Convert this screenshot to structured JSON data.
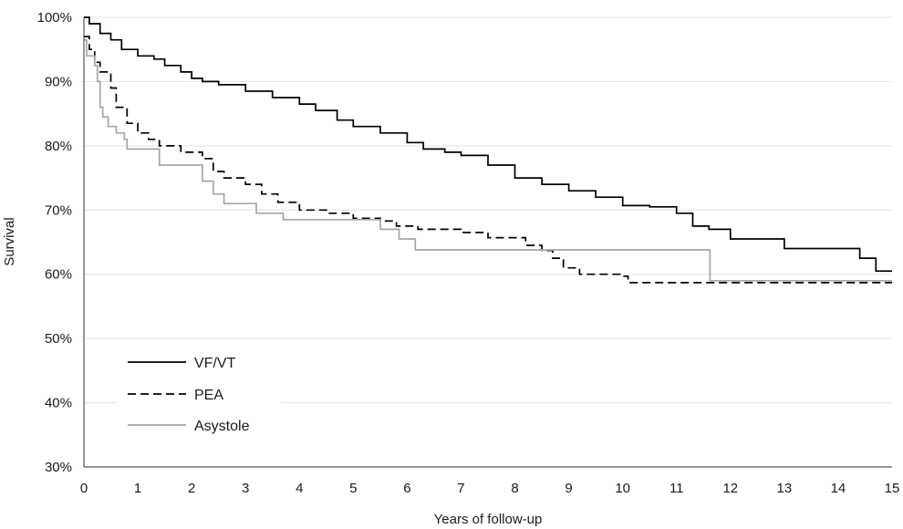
{
  "chart_data": {
    "type": "line",
    "xlabel": "Years of follow-up",
    "ylabel": "Survival",
    "xlim": [
      0,
      15
    ],
    "ylim": [
      30,
      100
    ],
    "x_ticks": [
      "0",
      "1",
      "2",
      "3",
      "4",
      "5",
      "6",
      "7",
      "8",
      "9",
      "10",
      "11",
      "12",
      "13",
      "14",
      "15"
    ],
    "y_ticks": [
      "30%",
      "40%",
      "50%",
      "60%",
      "70%",
      "80%",
      "90%",
      "100%"
    ],
    "grid": "horizontal",
    "legend_position": "lower-left",
    "series": [
      {
        "name": "VF/VT",
        "color": "#000000",
        "dash": "solid",
        "points": [
          [
            0,
            100
          ],
          [
            0.1,
            99
          ],
          [
            0.3,
            97.5
          ],
          [
            0.5,
            96.5
          ],
          [
            0.7,
            95
          ],
          [
            1,
            94
          ],
          [
            1.3,
            93.5
          ],
          [
            1.5,
            92.5
          ],
          [
            1.8,
            91.5
          ],
          [
            2,
            90.5
          ],
          [
            2.2,
            90
          ],
          [
            2.5,
            89.5
          ],
          [
            3,
            88.5
          ],
          [
            3.5,
            87.5
          ],
          [
            4,
            86.5
          ],
          [
            4.3,
            85.5
          ],
          [
            4.7,
            84
          ],
          [
            5,
            83
          ],
          [
            5.5,
            82
          ],
          [
            6,
            80.5
          ],
          [
            6.3,
            79.5
          ],
          [
            6.7,
            79
          ],
          [
            7,
            78.5
          ],
          [
            7.5,
            77
          ],
          [
            8,
            75
          ],
          [
            8.5,
            74
          ],
          [
            9,
            73
          ],
          [
            9.5,
            72
          ],
          [
            10,
            70.7
          ],
          [
            10.5,
            70.5
          ],
          [
            11,
            69.5
          ],
          [
            11.3,
            67.5
          ],
          [
            11.6,
            67
          ],
          [
            12,
            65.5
          ],
          [
            12.5,
            65.5
          ],
          [
            13,
            64
          ],
          [
            13.5,
            64
          ],
          [
            14,
            64
          ],
          [
            14.2,
            64
          ],
          [
            14.4,
            62.5
          ],
          [
            14.7,
            60.5
          ],
          [
            15,
            60.5
          ]
        ]
      },
      {
        "name": "PEA",
        "color": "#000000",
        "dash": "dashed",
        "points": [
          [
            0,
            97
          ],
          [
            0.1,
            95
          ],
          [
            0.2,
            93
          ],
          [
            0.3,
            91.5
          ],
          [
            0.5,
            89
          ],
          [
            0.6,
            86
          ],
          [
            0.8,
            83.5
          ],
          [
            1,
            82
          ],
          [
            1.2,
            81
          ],
          [
            1.4,
            80
          ],
          [
            1.8,
            79
          ],
          [
            2.2,
            78
          ],
          [
            2.4,
            76
          ],
          [
            2.6,
            75
          ],
          [
            3,
            74
          ],
          [
            3.3,
            72.5
          ],
          [
            3.6,
            71.2
          ],
          [
            4,
            70
          ],
          [
            4.5,
            69.5
          ],
          [
            5,
            68.7
          ],
          [
            5.5,
            68.3
          ],
          [
            5.8,
            67.5
          ],
          [
            6.2,
            67
          ],
          [
            7,
            66.5
          ],
          [
            7.5,
            65.7
          ],
          [
            8.2,
            64.5
          ],
          [
            8.5,
            63.7
          ],
          [
            8.7,
            62.5
          ],
          [
            8.9,
            61
          ],
          [
            9.2,
            60
          ],
          [
            10,
            59.7
          ],
          [
            10.1,
            58.7
          ],
          [
            15,
            58.7
          ]
        ]
      },
      {
        "name": "Asystole",
        "color": "#a6a6a6",
        "dash": "solid",
        "points": [
          [
            0,
            96.5
          ],
          [
            0.05,
            94
          ],
          [
            0.2,
            92.5
          ],
          [
            0.25,
            90
          ],
          [
            0.3,
            86
          ],
          [
            0.35,
            84.5
          ],
          [
            0.45,
            83
          ],
          [
            0.6,
            82
          ],
          [
            0.75,
            81
          ],
          [
            0.8,
            79.5
          ],
          [
            1.3,
            79.5
          ],
          [
            1.4,
            77
          ],
          [
            2.05,
            77
          ],
          [
            2.2,
            74.5
          ],
          [
            2.4,
            72.5
          ],
          [
            2.6,
            71
          ],
          [
            3.1,
            71
          ],
          [
            3.2,
            69.5
          ],
          [
            3.5,
            69.5
          ],
          [
            3.7,
            68.5
          ],
          [
            5.4,
            68.5
          ],
          [
            5.5,
            67
          ],
          [
            5.8,
            67
          ],
          [
            5.85,
            65.5
          ],
          [
            6.1,
            65.5
          ],
          [
            6.15,
            63.8
          ],
          [
            11.6,
            63.8
          ],
          [
            11.62,
            59
          ],
          [
            15,
            59
          ]
        ]
      }
    ]
  }
}
